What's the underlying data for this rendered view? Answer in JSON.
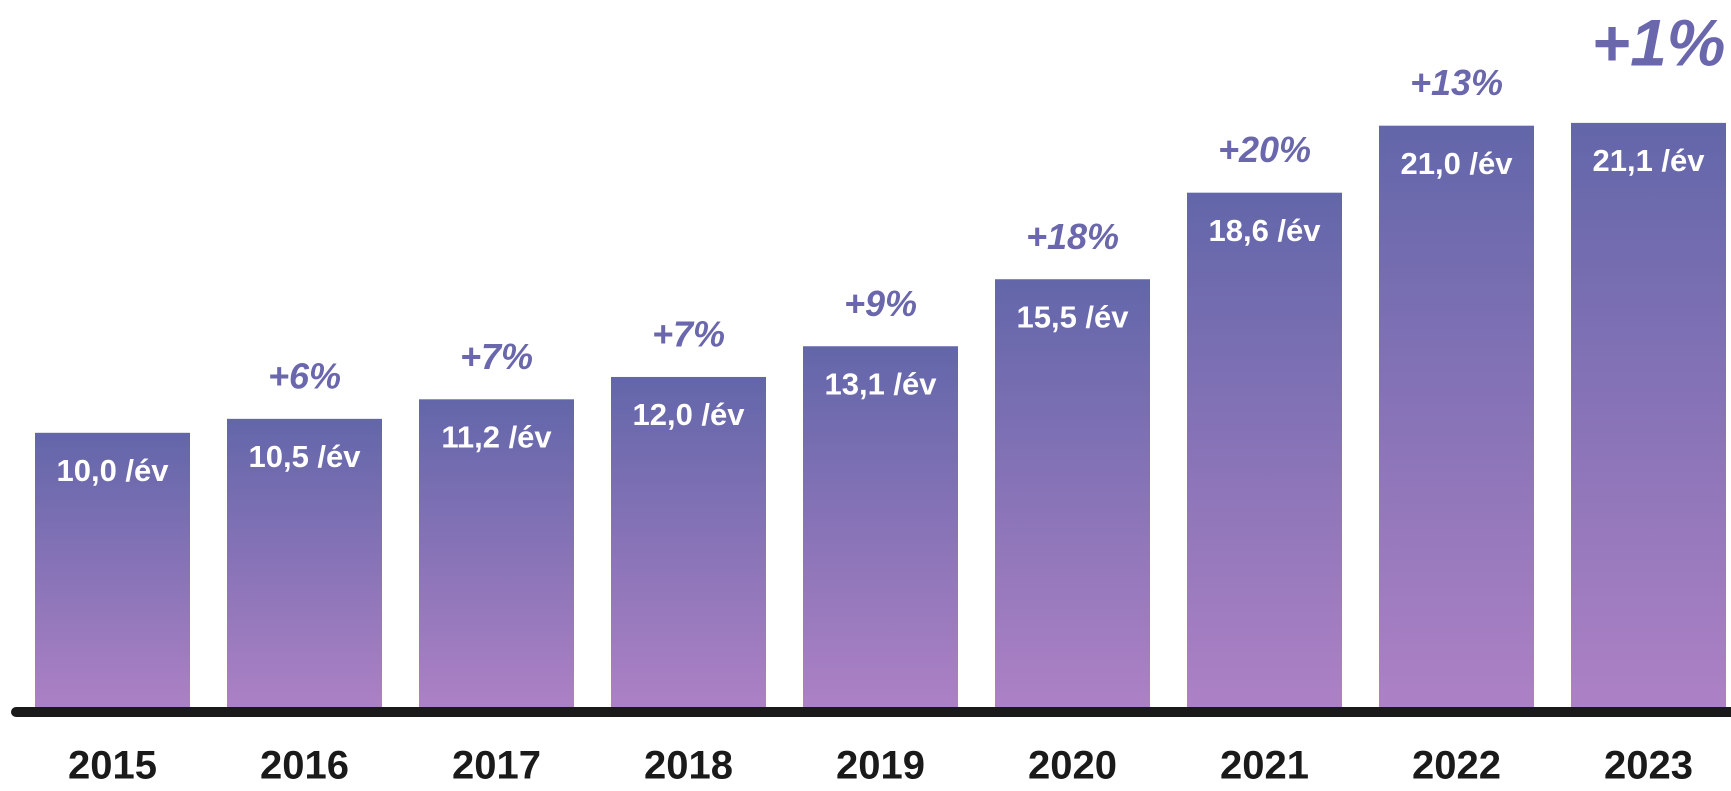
{
  "chart_data": {
    "type": "bar",
    "categories": [
      "2015",
      "2016",
      "2017",
      "2018",
      "2019",
      "2020",
      "2021",
      "2022",
      "2023"
    ],
    "values": [
      10.0,
      10.5,
      11.2,
      12.0,
      13.1,
      15.5,
      18.6,
      21.0,
      21.1
    ],
    "value_labels": [
      "10,0 /év",
      "10,5 /év",
      "11,2 /év",
      "12,0 /év",
      "13,1 /év",
      "15,5 /év",
      "18,6 /év",
      "21,0 /év",
      "21,1 /év"
    ],
    "annotations": [
      null,
      "+6%",
      "+7%",
      "+7%",
      "+9%",
      "+18%",
      "+20%",
      "+13%",
      "+1%"
    ],
    "gradient": [
      "#6366aa",
      "#ae81c5"
    ],
    "annotation_color": "#6a67ad",
    "ylim": [
      0,
      25
    ]
  }
}
